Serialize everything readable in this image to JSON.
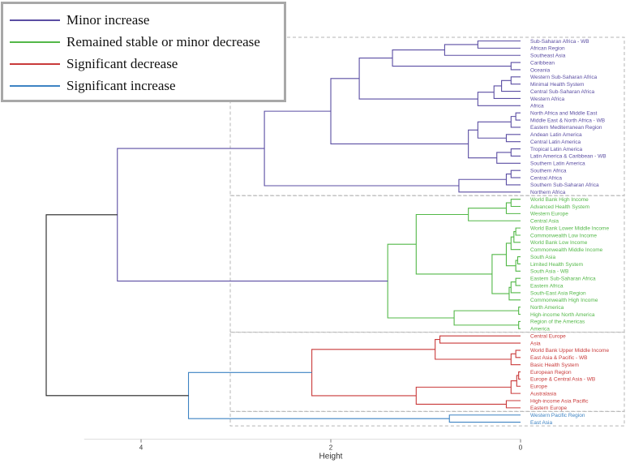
{
  "chart_data": {
    "type": "dendrogram",
    "title": "",
    "xlabel": "Height",
    "xlim": [
      4.6,
      0
    ],
    "x_ticks": [
      4,
      2,
      0
    ],
    "colors": {
      "minor_increase": "#5b4ea3",
      "stable": "#53b848",
      "significant_decrease": "#c93a3a",
      "significant_increase": "#3d83c3",
      "root": "#222222",
      "box": "#b5b5b5"
    },
    "legend": [
      {
        "label": "Minor increase",
        "color": "#5b4ea3"
      },
      {
        "label": "Remained stable or minor decrease",
        "color": "#53b848"
      },
      {
        "label": "Significant decrease",
        "color": "#c93a3a"
      },
      {
        "label": "Significant increase",
        "color": "#3d83c3"
      }
    ],
    "leaves": [
      {
        "label": "Sub-Saharan Africa - WB",
        "group": "minor_increase"
      },
      {
        "label": "African Region",
        "group": "minor_increase"
      },
      {
        "label": "Southeast Asia",
        "group": "minor_increase"
      },
      {
        "label": "Caribbean",
        "group": "minor_increase"
      },
      {
        "label": "Oceania",
        "group": "minor_increase"
      },
      {
        "label": "Western Sub-Saharan Africa",
        "group": "minor_increase"
      },
      {
        "label": "Minimal Health System",
        "group": "minor_increase"
      },
      {
        "label": "Central Sub-Saharan Africa",
        "group": "minor_increase"
      },
      {
        "label": "Western Africa",
        "group": "minor_increase"
      },
      {
        "label": "Africa",
        "group": "minor_increase"
      },
      {
        "label": "North Africa and Middle East",
        "group": "minor_increase"
      },
      {
        "label": "Middle East & North Africa - WB",
        "group": "minor_increase"
      },
      {
        "label": "Eastern Mediterranean Region",
        "group": "minor_increase"
      },
      {
        "label": "Andean Latin America",
        "group": "minor_increase"
      },
      {
        "label": "Central Latin America",
        "group": "minor_increase"
      },
      {
        "label": "Tropical Latin America",
        "group": "minor_increase"
      },
      {
        "label": "Latin America & Caribbean - WB",
        "group": "minor_increase"
      },
      {
        "label": "Southern Latin America",
        "group": "minor_increase"
      },
      {
        "label": "Southern Africa",
        "group": "minor_increase"
      },
      {
        "label": "Central Africa",
        "group": "minor_increase"
      },
      {
        "label": "Southern Sub-Saharan Africa",
        "group": "minor_increase"
      },
      {
        "label": "Northern Africa",
        "group": "minor_increase"
      },
      {
        "label": "World Bank High Income",
        "group": "stable"
      },
      {
        "label": "Advanced Health System",
        "group": "stable"
      },
      {
        "label": "Western Europe",
        "group": "stable"
      },
      {
        "label": "Central Asia",
        "group": "stable"
      },
      {
        "label": "World Bank Lower Middle Income",
        "group": "stable"
      },
      {
        "label": "Commonwealth Low Income",
        "group": "stable"
      },
      {
        "label": "World Bank Low Income",
        "group": "stable"
      },
      {
        "label": "Commonwealth Middle Income",
        "group": "stable"
      },
      {
        "label": "South Asia",
        "group": "stable"
      },
      {
        "label": "Limited Health System",
        "group": "stable"
      },
      {
        "label": "South Asia - WB",
        "group": "stable"
      },
      {
        "label": "Eastern Sub-Saharan Africa",
        "group": "stable"
      },
      {
        "label": "Eastern Africa",
        "group": "stable"
      },
      {
        "label": "South-East Asia Region",
        "group": "stable"
      },
      {
        "label": "Commonwealth High Income",
        "group": "stable"
      },
      {
        "label": "North America",
        "group": "stable"
      },
      {
        "label": "High-income North America",
        "group": "stable"
      },
      {
        "label": "Region of the Americas",
        "group": "stable"
      },
      {
        "label": "America",
        "group": "stable"
      },
      {
        "label": "Central Europe",
        "group": "significant_decrease"
      },
      {
        "label": "Asia",
        "group": "significant_decrease"
      },
      {
        "label": "World Bank Upper Middle Income",
        "group": "significant_decrease"
      },
      {
        "label": "East Asia & Pacific - WB",
        "group": "significant_decrease"
      },
      {
        "label": "Basic Health System",
        "group": "significant_decrease"
      },
      {
        "label": "European Region",
        "group": "significant_decrease"
      },
      {
        "label": "Europe & Central Asia - WB",
        "group": "significant_decrease"
      },
      {
        "label": "Europe",
        "group": "significant_decrease"
      },
      {
        "label": "Australasia",
        "group": "significant_decrease"
      },
      {
        "label": "High-income Asia Pacific",
        "group": "significant_decrease"
      },
      {
        "label": "Eastern Europe",
        "group": "significant_decrease"
      },
      {
        "label": "Western Pacific Region",
        "group": "significant_increase"
      },
      {
        "label": "East Asia",
        "group": "significant_increase"
      }
    ],
    "merges": [
      {
        "id": "p1",
        "a": 0,
        "b": 1,
        "h": 0.45,
        "group": "minor_increase"
      },
      {
        "id": "p2",
        "a": "p1",
        "b": 2,
        "h": 0.8,
        "group": "minor_increase"
      },
      {
        "id": "p3",
        "a": 3,
        "b": 4,
        "h": 0.1,
        "group": "minor_increase"
      },
      {
        "id": "p4",
        "a": "p2",
        "b": "p3",
        "h": 1.35,
        "group": "minor_increase"
      },
      {
        "id": "p5",
        "a": 5,
        "b": 6,
        "h": 0.1,
        "group": "minor_increase"
      },
      {
        "id": "p6",
        "a": "p5",
        "b": 7,
        "h": 0.2,
        "group": "minor_increase"
      },
      {
        "id": "p7",
        "a": "p6",
        "b": 8,
        "h": 0.28,
        "group": "minor_increase"
      },
      {
        "id": "p8",
        "a": "p7",
        "b": 9,
        "h": 0.45,
        "group": "minor_increase"
      },
      {
        "id": "p9",
        "a": "p4",
        "b": "p8",
        "h": 1.7,
        "group": "minor_increase"
      },
      {
        "id": "p10",
        "a": 10,
        "b": 11,
        "h": 0.05,
        "group": "minor_increase"
      },
      {
        "id": "p11",
        "a": "p10",
        "b": 12,
        "h": 0.1,
        "group": "minor_increase"
      },
      {
        "id": "p12",
        "a": 13,
        "b": 14,
        "h": 0.15,
        "group": "minor_increase"
      },
      {
        "id": "p13",
        "a": "p11",
        "b": "p12",
        "h": 0.45,
        "group": "minor_increase"
      },
      {
        "id": "p14",
        "a": 15,
        "b": 16,
        "h": 0.1,
        "group": "minor_increase"
      },
      {
        "id": "p15",
        "a": "p14",
        "b": 17,
        "h": 0.25,
        "group": "minor_increase"
      },
      {
        "id": "p16",
        "a": "p13",
        "b": "p15",
        "h": 0.55,
        "group": "minor_increase"
      },
      {
        "id": "p17",
        "a": "p9",
        "b": "p16",
        "h": 2.0,
        "group": "minor_increase"
      },
      {
        "id": "p18",
        "a": 18,
        "b": 19,
        "h": 0.1,
        "group": "minor_increase"
      },
      {
        "id": "p19",
        "a": "p18",
        "b": 20,
        "h": 0.15,
        "group": "minor_increase"
      },
      {
        "id": "p20",
        "a": "p19",
        "b": 21,
        "h": 0.65,
        "group": "minor_increase"
      },
      {
        "id": "p21",
        "a": "p17",
        "b": "p20",
        "h": 2.7,
        "group": "minor_increase"
      },
      {
        "id": "g1",
        "a": 22,
        "b": 23,
        "h": 0.1,
        "group": "stable"
      },
      {
        "id": "g2",
        "a": "g1",
        "b": 24,
        "h": 0.15,
        "group": "stable"
      },
      {
        "id": "g3",
        "a": "g2",
        "b": 25,
        "h": 0.55,
        "group": "stable"
      },
      {
        "id": "g4",
        "a": 26,
        "b": 27,
        "h": 0.05,
        "group": "stable"
      },
      {
        "id": "g5",
        "a": "g4",
        "b": 28,
        "h": 0.07,
        "group": "stable"
      },
      {
        "id": "g6",
        "a": "g5",
        "b": 29,
        "h": 0.1,
        "group": "stable"
      },
      {
        "id": "g7",
        "a": 30,
        "b": 31,
        "h": 0.03,
        "group": "stable"
      },
      {
        "id": "g8",
        "a": "g7",
        "b": 32,
        "h": 0.05,
        "group": "stable"
      },
      {
        "id": "g9",
        "a": "g6",
        "b": "g8",
        "h": 0.15,
        "group": "stable"
      },
      {
        "id": "g10",
        "a": 33,
        "b": 34,
        "h": 0.05,
        "group": "stable"
      },
      {
        "id": "g11",
        "a": "g10",
        "b": 35,
        "h": 0.1,
        "group": "stable"
      },
      {
        "id": "g12",
        "a": "g11",
        "b": 36,
        "h": 0.12,
        "group": "stable"
      },
      {
        "id": "g13",
        "a": "g9",
        "b": "g12",
        "h": 0.3,
        "group": "stable"
      },
      {
        "id": "g14",
        "a": "g3",
        "b": "g13",
        "h": 1.1,
        "group": "stable"
      },
      {
        "id": "g15",
        "a": 37,
        "b": 38,
        "h": 0.02,
        "group": "stable"
      },
      {
        "id": "g16",
        "a": 39,
        "b": 40,
        "h": 0.02,
        "group": "stable"
      },
      {
        "id": "g17",
        "a": "g15",
        "b": "g16",
        "h": 0.7,
        "group": "stable"
      },
      {
        "id": "g18",
        "a": "g14",
        "b": "g17",
        "h": 1.4,
        "group": "stable"
      },
      {
        "id": "r1",
        "a": 41,
        "b": 42,
        "h": 0.85,
        "group": "significant_decrease"
      },
      {
        "id": "r2",
        "a": 43,
        "b": 44,
        "h": 0.05,
        "group": "significant_decrease"
      },
      {
        "id": "r3",
        "a": "r2",
        "b": 45,
        "h": 0.1,
        "group": "significant_decrease"
      },
      {
        "id": "r4",
        "a": "r1",
        "b": "r3",
        "h": 0.9,
        "group": "significant_decrease"
      },
      {
        "id": "r5",
        "a": 46,
        "b": 47,
        "h": 0.02,
        "group": "significant_decrease"
      },
      {
        "id": "r6",
        "a": "r5",
        "b": 48,
        "h": 0.04,
        "group": "significant_decrease"
      },
      {
        "id": "r7",
        "a": "r6",
        "b": 49,
        "h": 0.1,
        "group": "significant_decrease"
      },
      {
        "id": "r8",
        "a": 50,
        "b": 51,
        "h": 0.15,
        "group": "significant_decrease"
      },
      {
        "id": "r9",
        "a": "r7",
        "b": "r8",
        "h": 1.1,
        "group": "significant_decrease"
      },
      {
        "id": "r10",
        "a": "r4",
        "b": "r9",
        "h": 2.2,
        "group": "significant_decrease"
      },
      {
        "id": "b1",
        "a": 52,
        "b": 53,
        "h": 0.75,
        "group": "significant_increase"
      },
      {
        "id": "b2",
        "a": "r10",
        "b": "b1",
        "h": 3.5,
        "group": "significant_increase"
      },
      {
        "id": "k1",
        "a": "p21",
        "b": "g18",
        "h": 4.25,
        "group": "minor_increase"
      },
      {
        "id": "root",
        "a": "k1",
        "b": "b2",
        "h": 5.0,
        "group": "root"
      }
    ],
    "cluster_boxes": [
      {
        "group": "minor_increase",
        "first": 0,
        "last": 21
      },
      {
        "group": "stable",
        "first": 22,
        "last": 40
      },
      {
        "group": "significant_decrease",
        "first": 41,
        "last": 51
      },
      {
        "group": "significant_increase",
        "first": 52,
        "last": 53
      }
    ],
    "grid": false,
    "legend_position": "top-left"
  }
}
